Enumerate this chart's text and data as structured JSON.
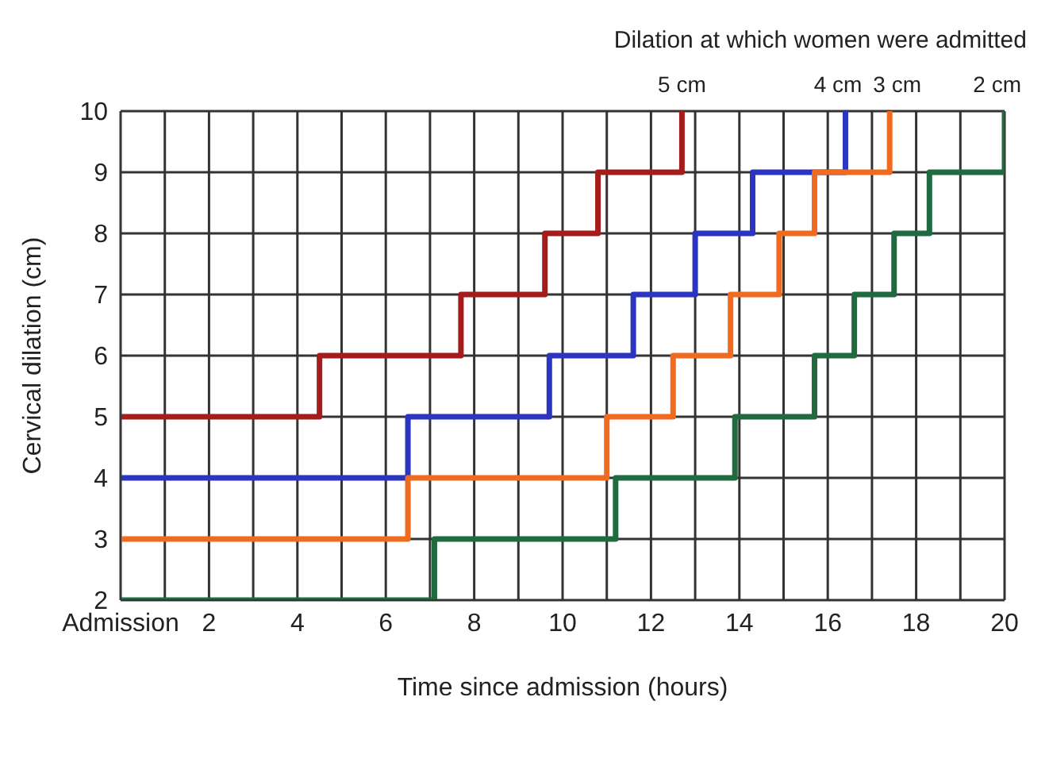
{
  "chart_data": {
    "type": "step",
    "xlabel": "Time since admission (hours)",
    "ylabel": "Cervical dilation (cm)",
    "legend_title": "Dilation at which women were admitted",
    "xlim": [
      0,
      20
    ],
    "ylim": [
      2,
      10
    ],
    "xticks": [
      {
        "value": 0,
        "label": "Admission"
      },
      {
        "value": 1,
        "label": null
      },
      2,
      {
        "value": 3,
        "label": null
      },
      4,
      {
        "value": 5,
        "label": null
      },
      6,
      {
        "value": 7,
        "label": null
      },
      8,
      {
        "value": 9,
        "label": null
      },
      10,
      {
        "value": 11,
        "label": null
      },
      12,
      {
        "value": 13,
        "label": null
      },
      14,
      {
        "value": 15,
        "label": null
      },
      16,
      {
        "value": 17,
        "label": null
      },
      18,
      {
        "value": 19,
        "label": null
      },
      20
    ],
    "yticks": [
      2,
      3,
      4,
      5,
      6,
      7,
      8,
      9,
      10
    ],
    "grid": true,
    "line_style": "solid",
    "marker": "none",
    "series": [
      {
        "name": "5 cm",
        "color": "#a51c1c",
        "x": [
          0,
          4.5,
          7.7,
          9.6,
          10.8,
          12.7
        ],
        "values": [
          5,
          6,
          7,
          8,
          9,
          10
        ]
      },
      {
        "name": "4 cm",
        "color": "#2b35c0",
        "x": [
          0,
          6.5,
          9.7,
          11.6,
          13.0,
          14.3,
          16.4
        ],
        "values": [
          4,
          5,
          6,
          7,
          8,
          9,
          10
        ]
      },
      {
        "name": "3 cm",
        "color": "#f06a1f",
        "x": [
          0,
          6.5,
          11.0,
          12.5,
          13.8,
          14.9,
          15.7,
          17.4
        ],
        "values": [
          3,
          4,
          5,
          6,
          7,
          8,
          9,
          10
        ]
      },
      {
        "name": "2 cm",
        "color": "#1f6b3f",
        "x": [
          0,
          7.1,
          11.2,
          13.9,
          15.7,
          16.6,
          17.5,
          18.3,
          20.0
        ],
        "values": [
          2,
          3,
          4,
          5,
          6,
          7,
          8,
          9,
          10
        ]
      }
    ]
  }
}
